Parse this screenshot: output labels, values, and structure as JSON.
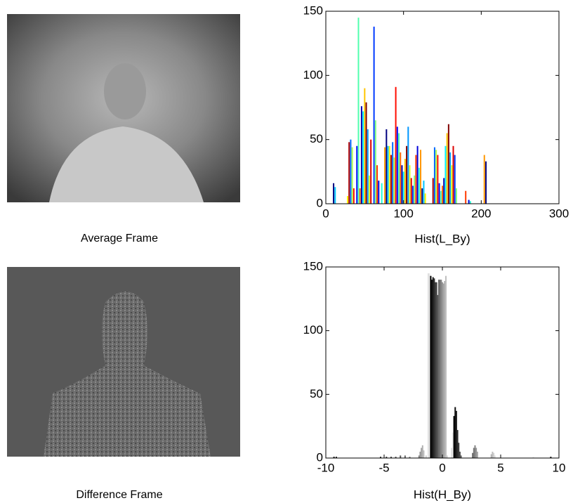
{
  "captions": [
    "Average Frame",
    "Difference Frame"
  ],
  "chart_data": [
    {
      "type": "bar",
      "xlabel": "Hist(L_By)",
      "colormap": "jet",
      "x": [
        10,
        12,
        28,
        30,
        32,
        34,
        36,
        40,
        42,
        44,
        46,
        48,
        50,
        52,
        54,
        56,
        58,
        62,
        64,
        66,
        68,
        72,
        76,
        78,
        80,
        82,
        84,
        86,
        88,
        90,
        92,
        94,
        96,
        98,
        100,
        102,
        104,
        106,
        108,
        110,
        112,
        114,
        116,
        118,
        120,
        122,
        124,
        126,
        128,
        138,
        140,
        142,
        144,
        146,
        148,
        150,
        152,
        154,
        156,
        158,
        160,
        162,
        164,
        166,
        168,
        180,
        184,
        186,
        204,
        206
      ],
      "values": [
        16,
        13,
        6,
        48,
        50,
        44,
        12,
        45,
        145,
        12,
        76,
        72,
        90,
        79,
        58,
        22,
        50,
        138,
        65,
        30,
        18,
        16,
        44,
        58,
        45,
        45,
        38,
        48,
        36,
        91,
        60,
        55,
        40,
        30,
        25,
        35,
        45,
        60,
        30,
        20,
        14,
        22,
        38,
        45,
        28,
        42,
        12,
        18,
        8,
        20,
        44,
        42,
        38,
        16,
        10,
        14,
        20,
        45,
        55,
        62,
        40,
        30,
        45,
        38,
        12,
        10,
        3,
        2,
        38,
        33
      ],
      "xlim": [
        0,
        300
      ],
      "ylim": [
        0,
        150
      ],
      "xticks": [
        0,
        100,
        200,
        300
      ],
      "yticks": [
        0,
        50,
        100,
        150
      ]
    },
    {
      "type": "bar",
      "xlabel": "Hist(H_By)",
      "colormap": "gray",
      "x": [
        -9.3,
        -9.1,
        -5.3,
        -4.8,
        -4.4,
        -4.0,
        -3.6,
        -3.2,
        -2.8,
        -2.0,
        -1.9,
        -1.8,
        -1.7,
        -1.6,
        -1.4,
        -1.2,
        -1.1,
        -1.0,
        -0.9,
        -0.8,
        -0.7,
        -0.6,
        -0.5,
        -0.4,
        -0.3,
        -0.2,
        -0.1,
        0.0,
        0.1,
        0.2,
        0.3,
        0.4,
        0.8,
        0.9,
        1.0,
        1.1,
        1.2,
        1.3,
        1.4,
        1.5,
        1.6,
        2.6,
        2.7,
        2.8,
        2.9,
        3.0,
        4.2,
        4.3,
        4.4,
        4.5,
        7.8,
        9.3
      ],
      "values": [
        1,
        1,
        1,
        1,
        1,
        1,
        2,
        2,
        1,
        2,
        5,
        8,
        10,
        6,
        2,
        145,
        145,
        143,
        140,
        142,
        141,
        138,
        138,
        128,
        140,
        140,
        140,
        138,
        137,
        139,
        143,
        2,
        8,
        20,
        33,
        40,
        37,
        22,
        12,
        5,
        2,
        4,
        8,
        10,
        8,
        5,
        3,
        5,
        4,
        2,
        1,
        1
      ],
      "xlim": [
        -10,
        10
      ],
      "ylim": [
        0,
        150
      ],
      "xticks": [
        -10,
        -5,
        0,
        5,
        10
      ],
      "yticks": [
        0,
        50,
        100,
        150
      ]
    }
  ]
}
